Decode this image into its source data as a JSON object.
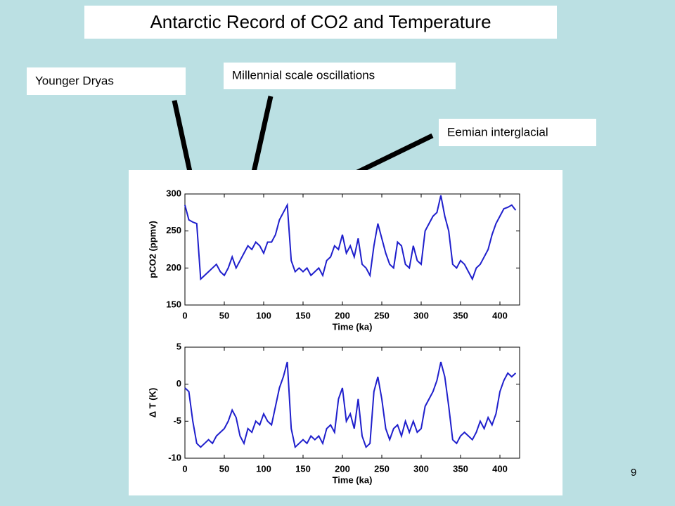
{
  "slide": {
    "title": "Antarctic Record of CO2 and Temperature",
    "annotations": [
      "Younger Dryas",
      "Millennial scale oscillations",
      "Eemian interglacial"
    ],
    "page_number": "9"
  },
  "chart_data": [
    {
      "type": "line",
      "xlabel": "Time (ka)",
      "ylabel": "pCO2 (ppmv)",
      "color": "#1f1fcc",
      "x": [
        0,
        5,
        10,
        15,
        20,
        25,
        30,
        35,
        40,
        45,
        50,
        55,
        60,
        65,
        70,
        75,
        80,
        85,
        90,
        95,
        100,
        105,
        110,
        115,
        120,
        125,
        130,
        135,
        140,
        145,
        150,
        155,
        160,
        165,
        170,
        175,
        180,
        185,
        190,
        195,
        200,
        205,
        210,
        215,
        220,
        225,
        230,
        235,
        240,
        245,
        250,
        255,
        260,
        265,
        270,
        275,
        280,
        285,
        290,
        295,
        300,
        305,
        310,
        315,
        320,
        325,
        330,
        335,
        340,
        345,
        350,
        355,
        360,
        365,
        370,
        375,
        380,
        385,
        390,
        395,
        400,
        405,
        410,
        415,
        420
      ],
      "values": [
        285,
        265,
        262,
        260,
        185,
        190,
        195,
        200,
        205,
        195,
        190,
        200,
        215,
        200,
        210,
        220,
        230,
        225,
        235,
        230,
        220,
        235,
        235,
        245,
        265,
        275,
        285,
        210,
        195,
        200,
        195,
        200,
        190,
        195,
        200,
        190,
        210,
        215,
        230,
        225,
        245,
        220,
        230,
        215,
        240,
        205,
        200,
        190,
        230,
        260,
        240,
        220,
        205,
        200,
        235,
        230,
        205,
        200,
        230,
        210,
        205,
        250,
        260,
        270,
        275,
        298,
        270,
        250,
        205,
        200,
        210,
        205,
        195,
        185,
        200,
        205,
        215,
        225,
        245,
        260,
        270,
        280,
        282,
        285,
        278
      ],
      "xlim": [
        0,
        425
      ],
      "ylim": [
        150,
        300
      ],
      "xticks": [
        0,
        50,
        100,
        150,
        200,
        250,
        300,
        350,
        400
      ],
      "yticks": [
        150,
        200,
        250,
        300
      ]
    },
    {
      "type": "line",
      "xlabel": "Time (ka)",
      "ylabel": "Δ T (K)",
      "color": "#1f1fcc",
      "x": [
        0,
        5,
        10,
        15,
        20,
        25,
        30,
        35,
        40,
        45,
        50,
        55,
        60,
        65,
        70,
        75,
        80,
        85,
        90,
        95,
        100,
        105,
        110,
        115,
        120,
        125,
        130,
        135,
        140,
        145,
        150,
        155,
        160,
        165,
        170,
        175,
        180,
        185,
        190,
        195,
        200,
        205,
        210,
        215,
        220,
        225,
        230,
        235,
        240,
        245,
        250,
        255,
        260,
        265,
        270,
        275,
        280,
        285,
        290,
        295,
        300,
        305,
        310,
        315,
        320,
        325,
        330,
        335,
        340,
        345,
        350,
        355,
        360,
        365,
        370,
        375,
        380,
        385,
        390,
        395,
        400,
        405,
        410,
        415,
        420
      ],
      "values": [
        -0.5,
        -1,
        -5,
        -8,
        -8.5,
        -8,
        -7.5,
        -8,
        -7,
        -6.5,
        -6,
        -5,
        -3.5,
        -4.5,
        -7,
        -8,
        -6,
        -6.5,
        -5,
        -5.5,
        -4,
        -5,
        -5.5,
        -3,
        -0.5,
        1,
        3,
        -6,
        -8.5,
        -8,
        -7.5,
        -8,
        -7,
        -7.5,
        -7,
        -8,
        -6,
        -5.5,
        -6.5,
        -2,
        -0.5,
        -5,
        -4,
        -6,
        -2,
        -7,
        -8.5,
        -8,
        -1,
        1,
        -2,
        -6,
        -7.5,
        -6,
        -5.5,
        -7,
        -5,
        -6.5,
        -5,
        -6.5,
        -6,
        -3,
        -2,
        -1,
        0.5,
        3,
        1,
        -3,
        -7.5,
        -8,
        -7,
        -6.5,
        -7,
        -7.5,
        -6.5,
        -5,
        -6,
        -4.5,
        -5.5,
        -4,
        -1,
        0.5,
        1.5,
        1,
        1.5
      ],
      "xlim": [
        0,
        425
      ],
      "ylim": [
        -10,
        5
      ],
      "xticks": [
        0,
        50,
        100,
        150,
        200,
        250,
        300,
        350,
        400
      ],
      "yticks": [
        -10,
        -5,
        0,
        5
      ]
    }
  ]
}
